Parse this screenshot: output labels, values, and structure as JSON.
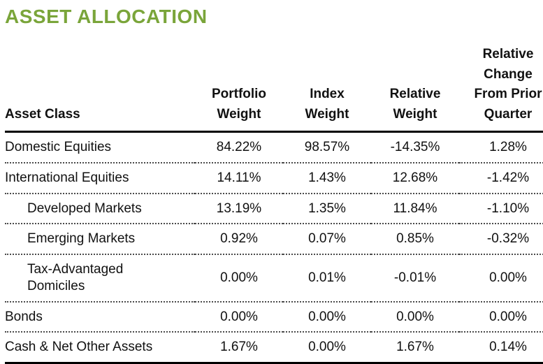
{
  "page": {
    "title": "ASSET ALLOCATION"
  },
  "colors": {
    "title_green": "#7aa53a",
    "text": "#111111",
    "rule_solid": "#000000",
    "rule_dotted": "#4a4a4a"
  },
  "table": {
    "columns": {
      "asset_class": "Asset Class",
      "portfolio_weight": "Portfolio\nWeight",
      "index_weight": "Index\nWeight",
      "relative_weight": "Relative\nWeight",
      "relative_change": "Relative\nChange\nFrom Prior\nQuarter"
    },
    "rows": [
      {
        "asset_class": "Domestic Equities",
        "indent": false,
        "portfolio_weight": "84.22%",
        "index_weight": "98.57%",
        "relative_weight": "-14.35%",
        "relative_change": "1.28%"
      },
      {
        "asset_class": "International Equities",
        "indent": false,
        "portfolio_weight": "14.11%",
        "index_weight": "1.43%",
        "relative_weight": "12.68%",
        "relative_change": "-1.42%"
      },
      {
        "asset_class": "Developed Markets",
        "indent": true,
        "portfolio_weight": "13.19%",
        "index_weight": "1.35%",
        "relative_weight": "11.84%",
        "relative_change": "-1.10%"
      },
      {
        "asset_class": "Emerging Markets",
        "indent": true,
        "portfolio_weight": "0.92%",
        "index_weight": "0.07%",
        "relative_weight": "0.85%",
        "relative_change": "-0.32%"
      },
      {
        "asset_class": "Tax-Advantaged\nDomiciles",
        "indent": true,
        "portfolio_weight": "0.00%",
        "index_weight": "0.01%",
        "relative_weight": "-0.01%",
        "relative_change": "0.00%"
      },
      {
        "asset_class": "Bonds",
        "indent": false,
        "portfolio_weight": "0.00%",
        "index_weight": "0.00%",
        "relative_weight": "0.00%",
        "relative_change": "0.00%"
      },
      {
        "asset_class": "Cash & Net Other Assets",
        "indent": false,
        "portfolio_weight": "1.67%",
        "index_weight": "0.00%",
        "relative_weight": "1.67%",
        "relative_change": "0.14%"
      }
    ]
  }
}
